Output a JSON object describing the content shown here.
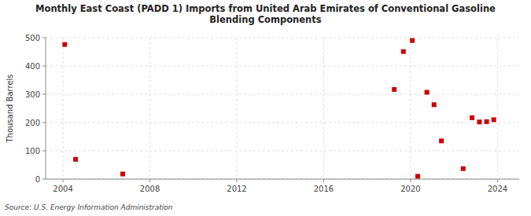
{
  "chart_data": {
    "type": "scatter",
    "title": [
      "Monthly East Coast (PADD 1) Imports from United Arab Emirates of Conventional Gasoline",
      "Blending Components"
    ],
    "y_label": "Thousand Barrels",
    "source": "Source: U.S. Energy Information Administration",
    "x": [
      2004.08,
      2004.58,
      2006.75,
      2019.25,
      2019.67,
      2020.08,
      2020.33,
      2020.75,
      2021.08,
      2021.42,
      2022.42,
      2022.83,
      2023.17,
      2023.5,
      2023.83
    ],
    "values": [
      476,
      70,
      18,
      317,
      451,
      490,
      10,
      307,
      263,
      135,
      37,
      217,
      202,
      203,
      210
    ],
    "color": "#cc0000",
    "marker": "square",
    "xlim": [
      2003.2,
      2025.0
    ],
    "xticks": [
      2004,
      2008,
      2012,
      2016,
      2020,
      2024
    ],
    "ylim": [
      0,
      500
    ],
    "yticks": [
      0,
      100,
      200,
      300,
      400,
      500
    ],
    "grid": true
  }
}
